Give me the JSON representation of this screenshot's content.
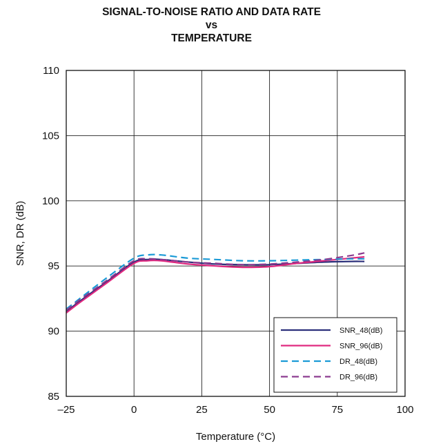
{
  "chart_data": {
    "type": "line",
    "title": [
      "SIGNAL-TO-NOISE RATIO AND DATA RATE",
      "vs",
      "TEMPERATURE"
    ],
    "xlabel": "Temperature (°C)",
    "ylabel": "SNR, DR (dB)",
    "xlim": [
      -25,
      100
    ],
    "ylim": [
      85,
      110
    ],
    "xticks": [
      -25,
      0,
      25,
      50,
      75,
      100
    ],
    "xtick_labels": [
      "–25",
      "0",
      "25",
      "50",
      "75",
      "100"
    ],
    "yticks": [
      85,
      90,
      95,
      100,
      105,
      110
    ],
    "ytick_labels": [
      "85",
      "90",
      "95",
      "100",
      "105",
      "110"
    ],
    "grid": true,
    "legend_position": "bottom-right",
    "series": [
      {
        "name": "SNR_48(dB)",
        "color": "#2b2f7a",
        "dash": "solid",
        "x": [
          -25,
          -20,
          -10,
          0,
          5,
          10,
          20,
          30,
          40,
          50,
          60,
          70,
          80,
          85
        ],
        "y": [
          91.5,
          92.3,
          93.8,
          95.3,
          95.5,
          95.5,
          95.3,
          95.15,
          95.1,
          95.1,
          95.2,
          95.3,
          95.35,
          95.35
        ]
      },
      {
        "name": "SNR_96(dB)",
        "color": "#e0287f",
        "dash": "solid",
        "x": [
          -25,
          -20,
          -10,
          0,
          5,
          10,
          20,
          30,
          40,
          50,
          60,
          70,
          80,
          85
        ],
        "y": [
          91.4,
          92.2,
          93.7,
          95.2,
          95.4,
          95.4,
          95.15,
          95.0,
          94.9,
          94.95,
          95.2,
          95.4,
          95.6,
          95.7
        ]
      },
      {
        "name": "DR_48(dB)",
        "color": "#1a9ad6",
        "dash": "dashed",
        "x": [
          -25,
          -20,
          -10,
          0,
          5,
          10,
          20,
          30,
          40,
          50,
          60,
          70,
          80,
          85
        ],
        "y": [
          91.7,
          92.5,
          94.1,
          95.6,
          95.85,
          95.85,
          95.6,
          95.5,
          95.4,
          95.4,
          95.45,
          95.5,
          95.55,
          95.55
        ]
      },
      {
        "name": "DR_96(dB)",
        "color": "#8b3a8f",
        "dash": "dashed",
        "x": [
          -25,
          -20,
          -10,
          0,
          5,
          10,
          20,
          30,
          40,
          50,
          60,
          70,
          80,
          85
        ],
        "y": [
          91.6,
          92.4,
          93.9,
          95.4,
          95.55,
          95.5,
          95.3,
          95.2,
          95.1,
          95.15,
          95.3,
          95.5,
          95.8,
          96.0
        ]
      }
    ]
  }
}
